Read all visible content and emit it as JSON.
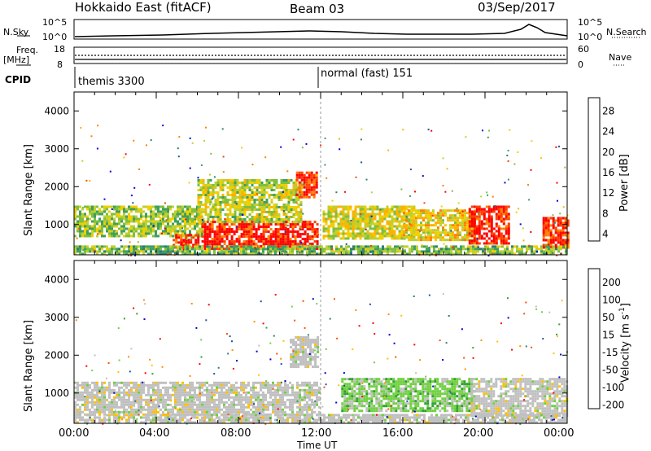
{
  "header": {
    "title": "Hokkaido East (fitACF)",
    "beam": "Beam 03",
    "date": "03/Sep/2017"
  },
  "top_panels": {
    "nsky_label": "N.Sky",
    "nsky_ticks": [
      "10^5",
      "10^0"
    ],
    "nsearch_label": "N.Search",
    "nsearch_ticks": [
      "10^5",
      "10^0"
    ],
    "freq_label": "Freq.",
    "freq_unit": "[MHz]",
    "freq_ticks": [
      "18",
      "8"
    ],
    "nave_label": "Nave",
    "nave_ticks": [
      "60",
      "0"
    ],
    "cpid_label": "CPID",
    "cpid_segments": [
      {
        "name": "themis 3300",
        "start_hour": 0
      },
      {
        "name": "normal (fast) 151",
        "start_hour": 12
      }
    ]
  },
  "chart_data": [
    {
      "type": "heatmap",
      "ylabel": "Slant Range [km]",
      "y_ticks": [
        "4000",
        "3000",
        "2000",
        "1000"
      ],
      "ylim": [
        200,
        4500
      ],
      "x_ticks": [
        "00:00",
        "04:00",
        "08:00",
        "12:00",
        "16:00",
        "20:00",
        "00:00"
      ],
      "xlim_hours": [
        0,
        24
      ],
      "colorbar": {
        "label": "Power [dB]",
        "ticks": [
          "28",
          "24",
          "20",
          "16",
          "12",
          "8",
          "4"
        ],
        "colors": [
          "#0000e6",
          "#1f4fa8",
          "#2f7f6a",
          "#3f9f5f",
          "#7fbf3f",
          "#bfd030",
          "#f0d000",
          "#ffb000",
          "#ff8000",
          "#ff4000",
          "#ff0000"
        ]
      },
      "regions": [
        {
          "t0": 0.0,
          "t1": 6.2,
          "r0": 700,
          "r1": 1500,
          "level": 0.45
        },
        {
          "t0": 4.8,
          "t1": 6.0,
          "r0": 400,
          "r1": 750,
          "level": 0.95
        },
        {
          "t0": 6.2,
          "t1": 11.9,
          "r0": 350,
          "r1": 1100,
          "level": 0.95
        },
        {
          "t0": 6.0,
          "t1": 11.0,
          "r0": 1100,
          "r1": 2200,
          "level": 0.5
        },
        {
          "t0": 10.8,
          "t1": 11.8,
          "r0": 1700,
          "r1": 2400,
          "level": 0.9
        },
        {
          "t0": 12.1,
          "t1": 16.5,
          "r0": 600,
          "r1": 1500,
          "level": 0.55
        },
        {
          "t0": 16.0,
          "t1": 19.5,
          "r0": 600,
          "r1": 1400,
          "level": 0.6
        },
        {
          "t0": 19.2,
          "t1": 21.2,
          "r0": 500,
          "r1": 1500,
          "level": 0.95
        },
        {
          "t0": 22.8,
          "t1": 24.0,
          "r0": 400,
          "r1": 1200,
          "level": 0.9
        },
        {
          "t0": 0.0,
          "t1": 24.0,
          "r0": 200,
          "r1": 450,
          "level": 0.4
        }
      ]
    },
    {
      "type": "heatmap",
      "ylabel": "Slant Range [km]",
      "y_ticks": [
        "4000",
        "3000",
        "2000",
        "1000"
      ],
      "ylim": [
        200,
        4500
      ],
      "x_ticks": [
        "00:00",
        "04:00",
        "08:00",
        "12:00",
        "16:00",
        "20:00",
        "00:00"
      ],
      "xlabel": "Time UT",
      "xlim_hours": [
        0,
        24
      ],
      "colorbar": {
        "label": "Velocity [m s",
        "label_sup": "-1",
        "label_end": "]",
        "ticks": [
          "200",
          "100",
          "50",
          "15",
          "-15",
          "-50",
          "-100",
          "-200"
        ],
        "colors": [
          "#ff0000",
          "#ff5000",
          "#ff9000",
          "#ffc000",
          "#c0c0c0",
          "#70d040",
          "#30a030",
          "#2f7f6a",
          "#1f4fa8",
          "#0000cc"
        ]
      },
      "regions": [
        {
          "t0": 0.0,
          "t1": 11.9,
          "r0": 400,
          "r1": 1300,
          "level": 0.5
        },
        {
          "t0": 10.5,
          "t1": 11.9,
          "r0": 1700,
          "r1": 2500,
          "level": 0.5
        },
        {
          "t0": 13.0,
          "t1": 19.5,
          "r0": 500,
          "r1": 1400,
          "level": 0.3
        },
        {
          "t0": 19.3,
          "t1": 24.0,
          "r0": 400,
          "r1": 1400,
          "level": 0.5
        },
        {
          "t0": 0.0,
          "t1": 24.0,
          "r0": 200,
          "r1": 450,
          "level": 0.6
        }
      ]
    }
  ],
  "x_axis_label": "Time UT"
}
